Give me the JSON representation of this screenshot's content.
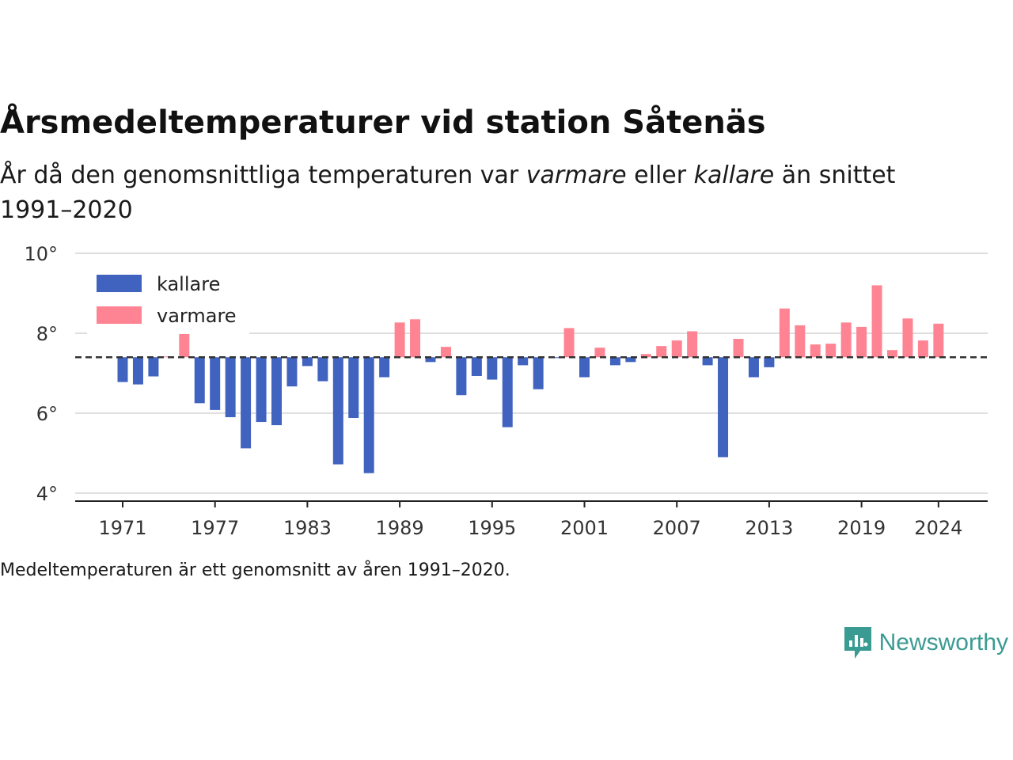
{
  "title": "Årsmedeltemperaturer vid station Såtenäs",
  "subtitle": {
    "p1": "År då den genomsnittliga temperaturen var ",
    "em1": "varmare",
    "p2": " eller ",
    "em2": "kallare",
    "p3": " än snittet 1991–2020"
  },
  "note": "Medeltemperaturen är ett genomsnitt av åren 1991–2020.",
  "brand": {
    "name": "Newsworthy",
    "color": "#3a9b92"
  },
  "colors": {
    "kallare": "#4163c0",
    "varmare": "#ff8493",
    "axis": "#222222",
    "grid": "#dddddd"
  },
  "chart_data": {
    "type": "bar",
    "baseline": 7.4,
    "ylim": [
      3.8,
      10.0
    ],
    "yticks": [
      4,
      6,
      8,
      10
    ],
    "ytick_labels": [
      "4°",
      "6°",
      "8°",
      "10°"
    ],
    "xticks": [
      1971,
      1977,
      1983,
      1989,
      1995,
      2001,
      2007,
      2013,
      2019,
      2024
    ],
    "legend": {
      "position": "top-left",
      "items": [
        {
          "key": "kallare",
          "label": "kallare"
        },
        {
          "key": "varmare",
          "label": "varmare"
        }
      ]
    },
    "years": [
      1971,
      1972,
      1973,
      1974,
      1975,
      1976,
      1977,
      1978,
      1979,
      1980,
      1981,
      1982,
      1983,
      1984,
      1985,
      1986,
      1987,
      1988,
      1989,
      1990,
      1991,
      1992,
      1993,
      1994,
      1995,
      1996,
      1997,
      1998,
      1999,
      2000,
      2001,
      2002,
      2003,
      2004,
      2005,
      2006,
      2007,
      2008,
      2009,
      2010,
      2011,
      2012,
      2013,
      2014,
      2015,
      2016,
      2017,
      2018,
      2019,
      2020,
      2021,
      2022,
      2023,
      2024
    ],
    "values": [
      6.78,
      6.72,
      6.92,
      7.42,
      8.05,
      6.25,
      6.08,
      5.9,
      5.12,
      5.78,
      5.7,
      6.67,
      7.18,
      6.8,
      4.72,
      5.88,
      4.5,
      6.9,
      8.27,
      8.35,
      7.28,
      7.66,
      6.45,
      6.93,
      6.84,
      5.65,
      7.2,
      6.6,
      7.38,
      8.13,
      6.9,
      7.64,
      7.2,
      7.28,
      7.48,
      7.68,
      7.82,
      8.05,
      7.2,
      4.9,
      7.86,
      6.9,
      7.15,
      8.62,
      8.2,
      7.72,
      7.74,
      8.27,
      8.16,
      9.2,
      7.58,
      8.37,
      7.82,
      8.24
    ]
  }
}
